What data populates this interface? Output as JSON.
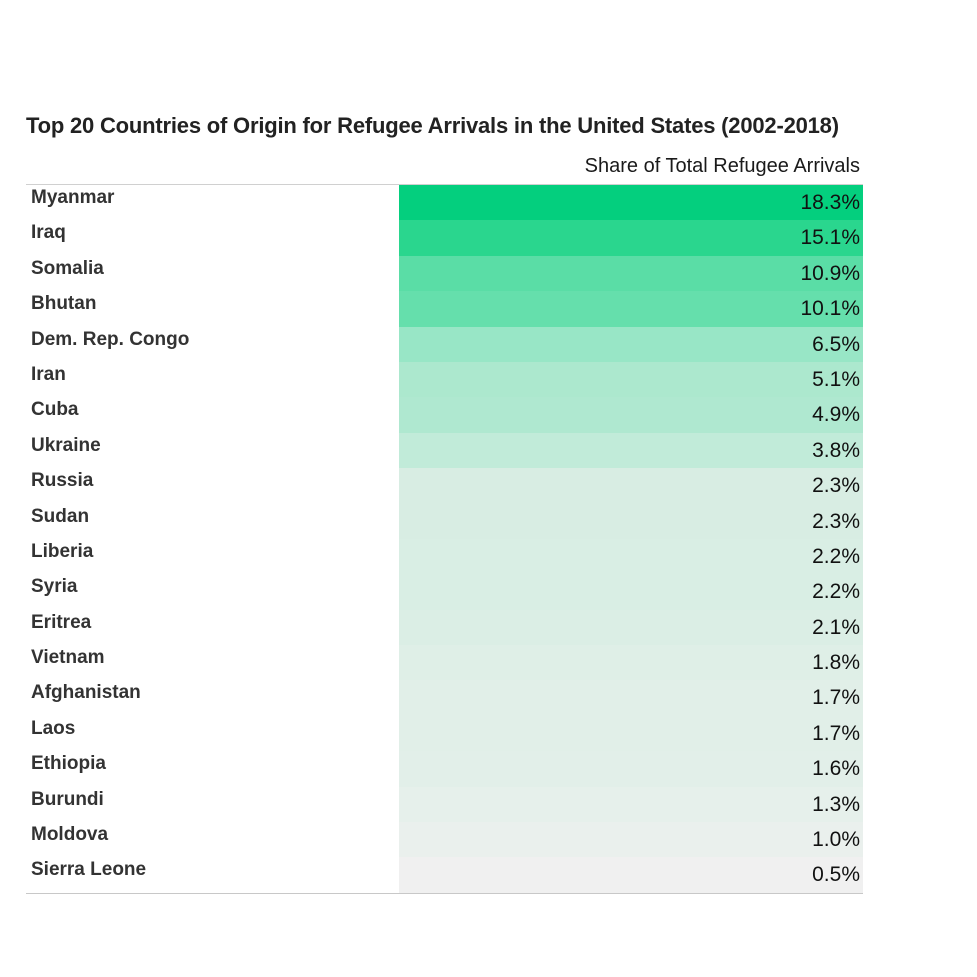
{
  "chart_data": {
    "type": "table",
    "title": "Top 20 Countries of Origin for Refugee Arrivals in the United States (2002-2018)",
    "column_header": "Share of Total Refugee Arrivals",
    "rows": [
      {
        "country": "Myanmar",
        "share_label": "18.3%",
        "value": 18.3,
        "color": "#04cf7e"
      },
      {
        "country": "Iraq",
        "share_label": "15.1%",
        "value": 15.1,
        "color": "#2ad68e"
      },
      {
        "country": "Somalia",
        "share_label": "10.9%",
        "value": 10.9,
        "color": "#5adda6"
      },
      {
        "country": "Bhutan",
        "share_label": "10.1%",
        "value": 10.1,
        "color": "#65dfac"
      },
      {
        "country": "Dem. Rep. Congo",
        "share_label": "6.5%",
        "value": 6.5,
        "color": "#98e6c6"
      },
      {
        "country": "Iran",
        "share_label": "5.1%",
        "value": 5.1,
        "color": "#ace8ce"
      },
      {
        "country": "Cuba",
        "share_label": "4.9%",
        "value": 4.9,
        "color": "#afe8d0"
      },
      {
        "country": "Ukraine",
        "share_label": "3.8%",
        "value": 3.8,
        "color": "#c1ebd9"
      },
      {
        "country": "Russia",
        "share_label": "2.3%",
        "value": 2.3,
        "color": "#d8ede3"
      },
      {
        "country": "Sudan",
        "share_label": "2.3%",
        "value": 2.3,
        "color": "#d8ede3"
      },
      {
        "country": "Liberia",
        "share_label": "2.2%",
        "value": 2.2,
        "color": "#d9eee4"
      },
      {
        "country": "Syria",
        "share_label": "2.2%",
        "value": 2.2,
        "color": "#d9eee4"
      },
      {
        "country": "Eritrea",
        "share_label": "2.1%",
        "value": 2.1,
        "color": "#dbeee5"
      },
      {
        "country": "Vietnam",
        "share_label": "1.8%",
        "value": 1.8,
        "color": "#dfefe7"
      },
      {
        "country": "Afghanistan",
        "share_label": "1.7%",
        "value": 1.7,
        "color": "#e1efe8"
      },
      {
        "country": "Laos",
        "share_label": "1.7%",
        "value": 1.7,
        "color": "#e1efe8"
      },
      {
        "country": "Ethiopia",
        "share_label": "1.6%",
        "value": 1.6,
        "color": "#e2efe9"
      },
      {
        "country": "Burundi",
        "share_label": "1.3%",
        "value": 1.3,
        "color": "#e6f0eb"
      },
      {
        "country": "Moldova",
        "share_label": "1.0%",
        "value": 1.0,
        "color": "#eaf0ed"
      },
      {
        "country": "Sierra Leone",
        "share_label": "0.5%",
        "value": 0.5,
        "color": "#f0f0f0"
      }
    ]
  }
}
